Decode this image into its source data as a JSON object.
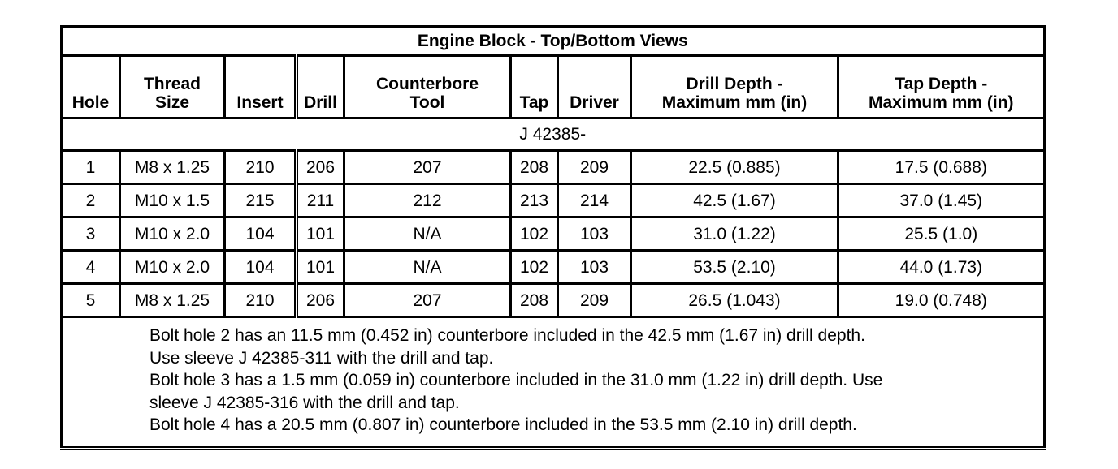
{
  "title": "Engine Block - Top/Bottom Views",
  "headers": [
    [
      "Hole"
    ],
    [
      "Thread",
      "Size"
    ],
    [
      "Insert"
    ],
    [
      "Drill"
    ],
    [
      "Counterbore",
      "Tool"
    ],
    [
      "Tap"
    ],
    [
      "Driver"
    ],
    [
      "Drill Depth -",
      "Maximum mm (in)"
    ],
    [
      "Tap Depth -",
      "Maximum mm (in)"
    ]
  ],
  "tool_prefix": "J 42385-",
  "rows": [
    [
      "1",
      "M8 x 1.25",
      "210",
      "206",
      "207",
      "208",
      "209",
      "22.5 (0.885)",
      "17.5 (0.688)"
    ],
    [
      "2",
      "M10 x 1.5",
      "215",
      "211",
      "212",
      "213",
      "214",
      "42.5 (1.67)",
      "37.0 (1.45)"
    ],
    [
      "3",
      "M10 x 2.0",
      "104",
      "101",
      "N/A",
      "102",
      "103",
      "31.0 (1.22)",
      "25.5 (1.0)"
    ],
    [
      "4",
      "M10 x 2.0",
      "104",
      "101",
      "N/A",
      "102",
      "103",
      "53.5 (2.10)",
      "44.0 (1.73)"
    ],
    [
      "5",
      "M8 x 1.25",
      "210",
      "206",
      "207",
      "208",
      "209",
      "26.5 (1.043)",
      "19.0 (0.748)"
    ]
  ],
  "notes": [
    "Bolt hole 2 has an 11.5 mm (0.452 in) counterbore included in the 42.5 mm (1.67 in) drill depth.",
    "Use sleeve J 42385-311 with the drill and tap.",
    "Bolt hole 3 has a 1.5 mm (0.059 in) counterbore included in the 31.0 mm (1.22 in) drill depth. Use",
    "sleeve J 42385-316 with the drill and tap.",
    "Bolt hole 4 has a 20.5 mm (0.807 in) counterbore included in the 53.5 mm (2.10 in) drill depth."
  ]
}
